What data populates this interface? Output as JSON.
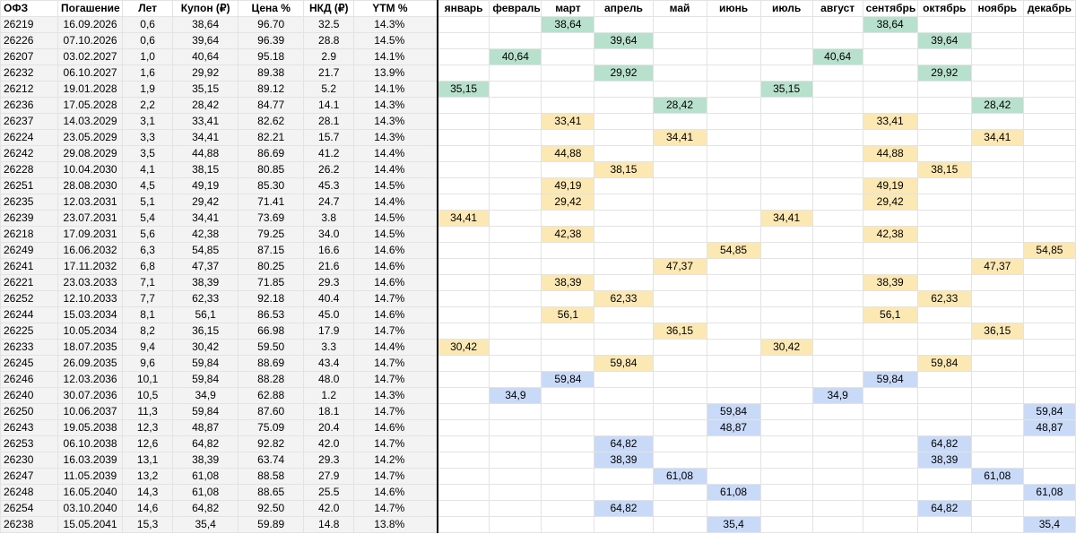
{
  "headers": [
    "ОФЗ",
    "Погашение",
    "Лет",
    "Купон (₽)",
    "Цена %",
    "НКД (₽)",
    "YTM %"
  ],
  "months": [
    "январь",
    "февраль",
    "март",
    "апрель",
    "май",
    "июнь",
    "июль",
    "август",
    "сентябрь",
    "октябрь",
    "ноябрь",
    "декабрь"
  ],
  "colors": {
    "green": "#b7e1cd",
    "yellow": "#fce8b2",
    "blue": "#c9daf8",
    "shade": "#f3f3f3"
  },
  "rows": [
    {
      "ofz": "26219",
      "date": "16.09.2026",
      "years": "0,6",
      "coupon": "38,64",
      "price": "96.70",
      "nkd": "32.5",
      "ytm": "14.3%",
      "color": "g",
      "pay": [
        3,
        9
      ]
    },
    {
      "ofz": "26226",
      "date": "07.10.2026",
      "years": "0,6",
      "coupon": "39,64",
      "price": "96.39",
      "nkd": "28.8",
      "ytm": "14.5%",
      "color": "g",
      "pay": [
        4,
        10
      ]
    },
    {
      "ofz": "26207",
      "date": "03.02.2027",
      "years": "1,0",
      "coupon": "40,64",
      "price": "95.18",
      "nkd": "2.9",
      "ytm": "14.1%",
      "color": "g",
      "pay": [
        2,
        8
      ]
    },
    {
      "ofz": "26232",
      "date": "06.10.2027",
      "years": "1,6",
      "coupon": "29,92",
      "price": "89.38",
      "nkd": "21.7",
      "ytm": "13.9%",
      "color": "g",
      "pay": [
        4,
        10
      ]
    },
    {
      "ofz": "26212",
      "date": "19.01.2028",
      "years": "1,9",
      "coupon": "35,15",
      "price": "89.12",
      "nkd": "5.2",
      "ytm": "14.1%",
      "color": "g",
      "pay": [
        1,
        7
      ]
    },
    {
      "ofz": "26236",
      "date": "17.05.2028",
      "years": "2,2",
      "coupon": "28,42",
      "price": "84.77",
      "nkd": "14.1",
      "ytm": "14.3%",
      "color": "g",
      "pay": [
        5,
        11
      ]
    },
    {
      "ofz": "26237",
      "date": "14.03.2029",
      "years": "3,1",
      "coupon": "33,41",
      "price": "82.62",
      "nkd": "28.1",
      "ytm": "14.3%",
      "color": "y",
      "pay": [
        3,
        9
      ]
    },
    {
      "ofz": "26224",
      "date": "23.05.2029",
      "years": "3,3",
      "coupon": "34,41",
      "price": "82.21",
      "nkd": "15.7",
      "ytm": "14.3%",
      "color": "y",
      "pay": [
        5,
        11
      ]
    },
    {
      "ofz": "26242",
      "date": "29.08.2029",
      "years": "3,5",
      "coupon": "44,88",
      "price": "86.69",
      "nkd": "41.2",
      "ytm": "14.4%",
      "color": "y",
      "pay": [
        3,
        9
      ]
    },
    {
      "ofz": "26228",
      "date": "10.04.2030",
      "years": "4,1",
      "coupon": "38,15",
      "price": "80.85",
      "nkd": "26.2",
      "ytm": "14.4%",
      "color": "y",
      "pay": [
        4,
        10
      ]
    },
    {
      "ofz": "26251",
      "date": "28.08.2030",
      "years": "4,5",
      "coupon": "49,19",
      "price": "85.30",
      "nkd": "45.3",
      "ytm": "14.5%",
      "color": "y",
      "pay": [
        3,
        9
      ]
    },
    {
      "ofz": "26235",
      "date": "12.03.2031",
      "years": "5,1",
      "coupon": "29,42",
      "price": "71.41",
      "nkd": "24.7",
      "ytm": "14.4%",
      "color": "y",
      "pay": [
        3,
        9
      ]
    },
    {
      "ofz": "26239",
      "date": "23.07.2031",
      "years": "5,4",
      "coupon": "34,41",
      "price": "73.69",
      "nkd": "3.8",
      "ytm": "14.5%",
      "color": "y",
      "pay": [
        1,
        7
      ]
    },
    {
      "ofz": "26218",
      "date": "17.09.2031",
      "years": "5,6",
      "coupon": "42,38",
      "price": "79.25",
      "nkd": "34.0",
      "ytm": "14.5%",
      "color": "y",
      "pay": [
        3,
        9
      ]
    },
    {
      "ofz": "26249",
      "date": "16.06.2032",
      "years": "6,3",
      "coupon": "54,85",
      "price": "87.15",
      "nkd": "16.6",
      "ytm": "14.6%",
      "color": "y",
      "pay": [
        6,
        12
      ]
    },
    {
      "ofz": "26241",
      "date": "17.11.2032",
      "years": "6,8",
      "coupon": "47,37",
      "price": "80.25",
      "nkd": "21.6",
      "ytm": "14.6%",
      "color": "y",
      "pay": [
        5,
        11
      ]
    },
    {
      "ofz": "26221",
      "date": "23.03.2033",
      "years": "7,1",
      "coupon": "38,39",
      "price": "71.85",
      "nkd": "29.3",
      "ytm": "14.6%",
      "color": "y",
      "pay": [
        3,
        9
      ]
    },
    {
      "ofz": "26252",
      "date": "12.10.2033",
      "years": "7,7",
      "coupon": "62,33",
      "price": "92.18",
      "nkd": "40.4",
      "ytm": "14.7%",
      "color": "y",
      "pay": [
        4,
        10
      ]
    },
    {
      "ofz": "26244",
      "date": "15.03.2034",
      "years": "8,1",
      "coupon": "56,1",
      "price": "86.53",
      "nkd": "45.0",
      "ytm": "14.6%",
      "color": "y",
      "pay": [
        3,
        9
      ]
    },
    {
      "ofz": "26225",
      "date": "10.05.2034",
      "years": "8,2",
      "coupon": "36,15",
      "price": "66.98",
      "nkd": "17.9",
      "ytm": "14.7%",
      "color": "y",
      "pay": [
        5,
        11
      ]
    },
    {
      "ofz": "26233",
      "date": "18.07.2035",
      "years": "9,4",
      "coupon": "30,42",
      "price": "59.50",
      "nkd": "3.3",
      "ytm": "14.4%",
      "color": "y",
      "pay": [
        1,
        7
      ]
    },
    {
      "ofz": "26245",
      "date": "26.09.2035",
      "years": "9,6",
      "coupon": "59,84",
      "price": "88.69",
      "nkd": "43.4",
      "ytm": "14.7%",
      "color": "y",
      "pay": [
        4,
        10
      ]
    },
    {
      "ofz": "26246",
      "date": "12.03.2036",
      "years": "10,1",
      "coupon": "59,84",
      "price": "88.28",
      "nkd": "48.0",
      "ytm": "14.7%",
      "color": "b",
      "pay": [
        3,
        9
      ]
    },
    {
      "ofz": "26240",
      "date": "30.07.2036",
      "years": "10,5",
      "coupon": "34,9",
      "price": "62.88",
      "nkd": "1.2",
      "ytm": "14.3%",
      "color": "b",
      "pay": [
        2,
        8
      ]
    },
    {
      "ofz": "26250",
      "date": "10.06.2037",
      "years": "11,3",
      "coupon": "59,84",
      "price": "87.60",
      "nkd": "18.1",
      "ytm": "14.7%",
      "color": "b",
      "pay": [
        6,
        12
      ]
    },
    {
      "ofz": "26243",
      "date": "19.05.2038",
      "years": "12,3",
      "coupon": "48,87",
      "price": "75.09",
      "nkd": "20.4",
      "ytm": "14.6%",
      "color": "b",
      "pay": [
        6,
        12
      ]
    },
    {
      "ofz": "26253",
      "date": "06.10.2038",
      "years": "12,6",
      "coupon": "64,82",
      "price": "92.82",
      "nkd": "42.0",
      "ytm": "14.7%",
      "color": "b",
      "pay": [
        4,
        10
      ]
    },
    {
      "ofz": "26230",
      "date": "16.03.2039",
      "years": "13,1",
      "coupon": "38,39",
      "price": "63.74",
      "nkd": "29.3",
      "ytm": "14.2%",
      "color": "b",
      "pay": [
        4,
        10
      ]
    },
    {
      "ofz": "26247",
      "date": "11.05.2039",
      "years": "13,2",
      "coupon": "61,08",
      "price": "88.58",
      "nkd": "27.9",
      "ytm": "14.7%",
      "color": "b",
      "pay": [
        5,
        11
      ]
    },
    {
      "ofz": "26248",
      "date": "16.05.2040",
      "years": "14,3",
      "coupon": "61,08",
      "price": "88.65",
      "nkd": "25.5",
      "ytm": "14.6%",
      "color": "b",
      "pay": [
        6,
        12
      ]
    },
    {
      "ofz": "26254",
      "date": "03.10.2040",
      "years": "14,6",
      "coupon": "64,82",
      "price": "92.50",
      "nkd": "42.0",
      "ytm": "14.7%",
      "color": "b",
      "pay": [
        4,
        10
      ]
    },
    {
      "ofz": "26238",
      "date": "15.05.2041",
      "years": "15,3",
      "coupon": "35,4",
      "price": "59.89",
      "nkd": "14.8",
      "ytm": "13.8%",
      "color": "b",
      "pay": [
        6,
        12
      ]
    }
  ]
}
